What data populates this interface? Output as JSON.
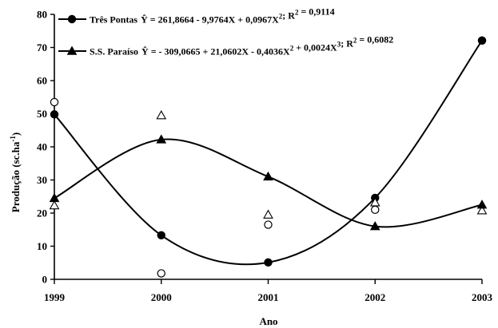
{
  "chart_data": {
    "type": "line",
    "xlabel": "Ano",
    "ylabel": "Produção (sc.ha-1)",
    "ylabel_parts": {
      "base": "Produção (sc.ha",
      "sup": "-1",
      "close": ")"
    },
    "categories": [
      "1999",
      "2000",
      "2001",
      "2002",
      "2003"
    ],
    "ylim": [
      0,
      80
    ],
    "yticks": [
      "0",
      "10",
      "20",
      "30",
      "40",
      "50",
      "60",
      "70",
      "80"
    ],
    "grid": false,
    "legend_position": "top-left",
    "series": [
      {
        "name": "Três Pontas",
        "marker": "circle",
        "fitted": [
          49.8,
          13.3,
          5.1,
          24.6,
          72.1
        ],
        "observed": [
          53.5,
          1.8,
          16.5,
          21.0,
          72.1
        ],
        "equation": {
          "prefix": "Ŷ",
          "parts": [
            {
              "t": " = 261,8664 - 9,9764X + 0,0967X"
            },
            {
              "sup": "2"
            },
            {
              "t": "; R"
            },
            {
              "sup": "2"
            },
            {
              "t": " = 0,9114"
            }
          ]
        }
      },
      {
        "name": "S.S. Paraíso",
        "marker": "triangle",
        "fitted": [
          24.5,
          42.2,
          31.0,
          16.0,
          22.5
        ],
        "observed": [
          22.3,
          49.5,
          19.5,
          23.2,
          20.8
        ],
        "equation": {
          "prefix": "Ŷ",
          "parts": [
            {
              "t": " =  - 309,0665 + 21,0602X - 0,4036X"
            },
            {
              "sup": "2"
            },
            {
              "t": " + 0,0024X"
            },
            {
              "sup": "3"
            },
            {
              "t": "; R"
            },
            {
              "sup": "2"
            },
            {
              "t": " = 0,6082"
            }
          ]
        }
      }
    ]
  },
  "colors": {
    "line": "#000000",
    "background": "#ffffff"
  }
}
